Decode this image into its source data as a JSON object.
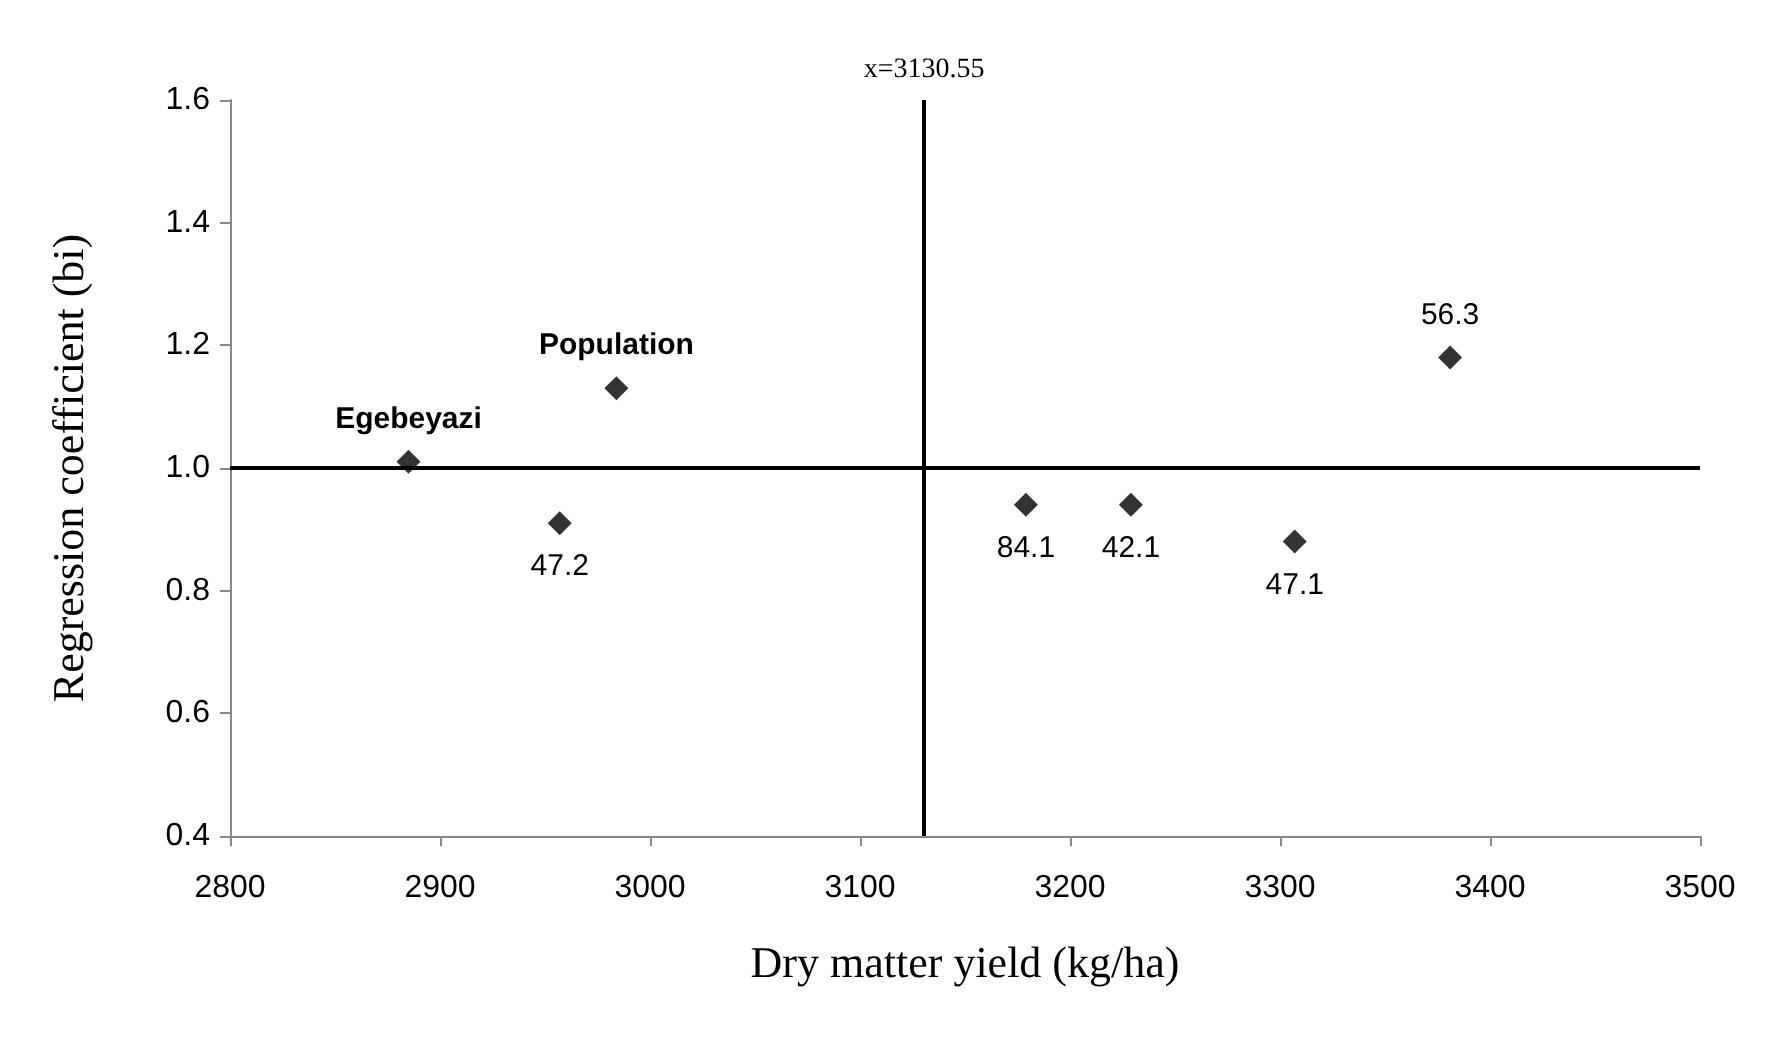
{
  "chart_data": {
    "type": "scatter",
    "xlabel": "Dry matter yield (kg/ha)",
    "ylabel": "Regression coefficient (bi)",
    "x": [
      2885,
      2984,
      2957,
      3179,
      3229,
      3307,
      3381
    ],
    "values": [
      1.01,
      1.13,
      0.91,
      0.94,
      0.94,
      0.88,
      1.18
    ],
    "annotations": [
      {
        "text": "Egebeyazi",
        "x": 2885,
        "y": 1.01
      },
      {
        "text": "Population",
        "x": 2984,
        "y": 1.13
      },
      {
        "text": "47.2",
        "x": 2957,
        "y": 0.91
      },
      {
        "text": "84.1",
        "x": 3179,
        "y": 0.94
      },
      {
        "text": "42.1",
        "x": 3229,
        "y": 0.94
      },
      {
        "text": "47.1",
        "x": 3307,
        "y": 0.88
      },
      {
        "text": "56.3",
        "x": 3381,
        "y": 1.18
      }
    ],
    "color": "#000000",
    "marker": "diamond",
    "xlim": [
      2800,
      3500
    ],
    "xticks": [
      2800,
      2900,
      3000,
      3100,
      3200,
      3300,
      3400,
      3500
    ],
    "ylim": [
      0.4,
      1.6
    ],
    "yticks": [
      {
        "value": 0.4,
        "label": "0.4"
      },
      {
        "value": 0.6,
        "label": "0.6"
      },
      {
        "value": 0.8,
        "label": "0.8"
      },
      {
        "value": 1.0,
        "label": "1.0"
      },
      {
        "value": 1.2,
        "label": "1.2"
      },
      {
        "value": 1.4,
        "label": "1.4"
      },
      {
        "value": 1.6,
        "label": "1.6"
      }
    ],
    "grid": false,
    "ref_lines": [
      {
        "axis": "x",
        "value": 3130.55,
        "label": "x=3130.55",
        "color": "#000000"
      },
      {
        "axis": "y",
        "value": 1.0,
        "color": "#000000"
      }
    ]
  }
}
